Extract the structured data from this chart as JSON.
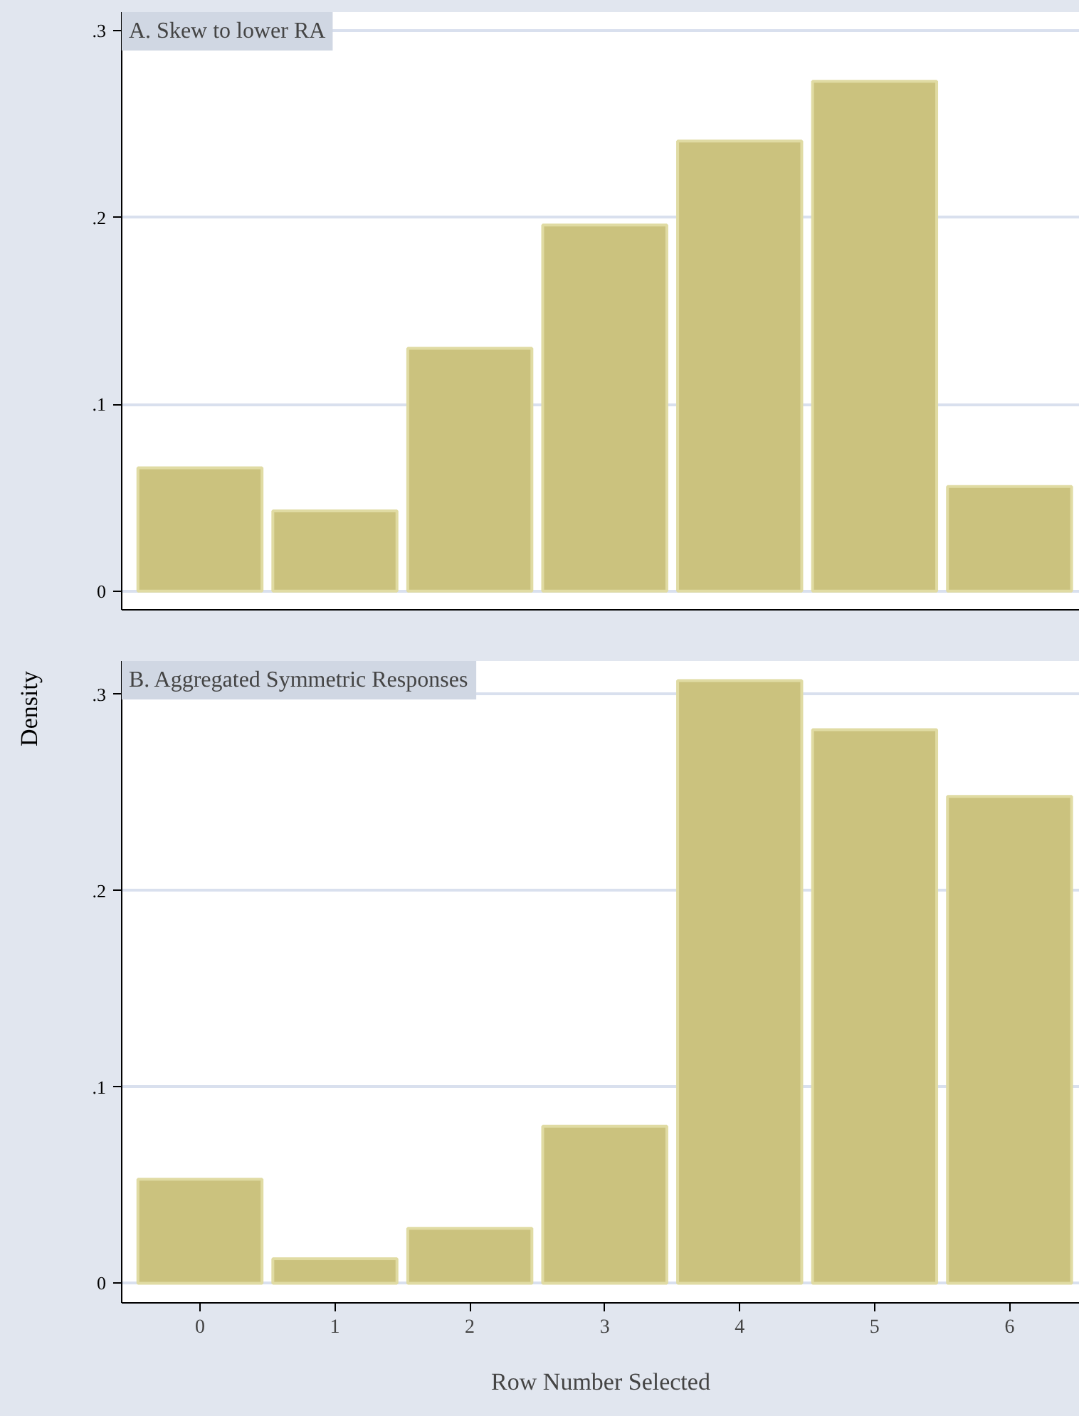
{
  "chart_data": [
    {
      "type": "bar",
      "title": "A. Skew to lower RA",
      "ylabel": "Density",
      "categories": [
        "0",
        "1",
        "2",
        "3",
        "4",
        "5",
        "6"
      ],
      "values": [
        0.066,
        0.043,
        0.13,
        0.196,
        0.241,
        0.273,
        0.056
      ],
      "color": "#cbc27e",
      "ylim": [
        -0.01,
        0.31
      ],
      "yticks": [
        0,
        {
          "value": 0.1,
          "label": ".1"
        },
        {
          "value": 0.2,
          "label": ".2"
        },
        {
          "value": 0.3,
          "label": ".3"
        }
      ],
      "grid": "y",
      "tick_labels": "y"
    },
    {
      "type": "bar",
      "title": "B. Aggregated Symmetric Responses",
      "xlabel": "Row Number Selected",
      "categories": [
        "0",
        "1",
        "2",
        "3",
        "4",
        "5",
        "6"
      ],
      "values": [
        0.053,
        0.0125,
        0.028,
        0.08,
        0.307,
        0.282,
        0.248
      ],
      "color": "#cbc27e",
      "ylim": [
        -0.01,
        0.317
      ],
      "yticks": [
        0,
        {
          "value": 0.1,
          "label": ".1"
        },
        {
          "value": 0.2,
          "label": ".2"
        },
        {
          "value": 0.3,
          "label": ".3"
        }
      ],
      "grid": "y"
    }
  ]
}
